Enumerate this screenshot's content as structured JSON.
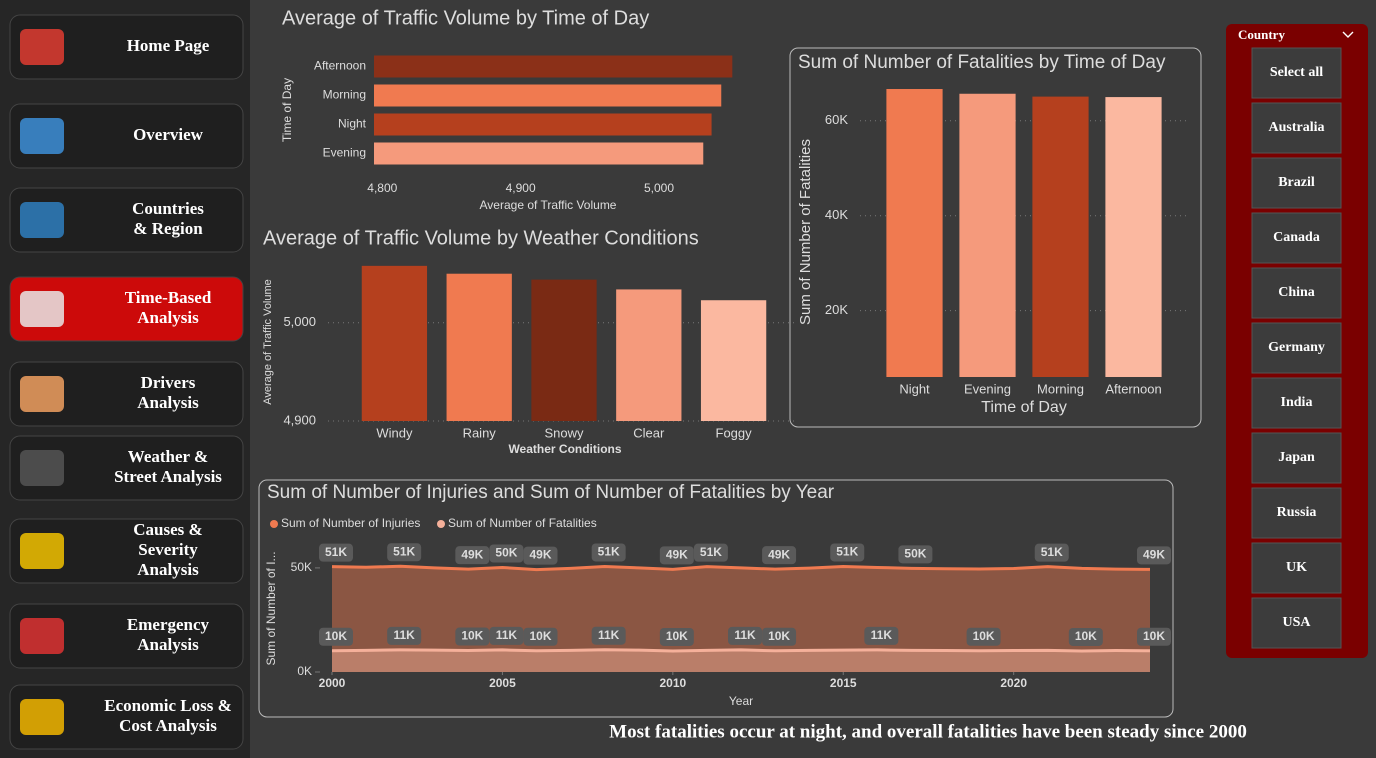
{
  "nav": [
    {
      "lines": [
        "Home Page"
      ]
    },
    {
      "lines": [
        "Overview"
      ]
    },
    {
      "lines": [
        "Countries",
        "& Region"
      ]
    },
    {
      "lines": [
        "Time-Based",
        "Analysis"
      ],
      "active": true
    },
    {
      "lines": [
        "Drivers",
        "Analysis"
      ]
    },
    {
      "lines": [
        "Weather &",
        "Street Analysis"
      ]
    },
    {
      "lines": [
        "Causes &",
        "Severity",
        "Analysis"
      ]
    },
    {
      "lines": [
        "Emergency",
        "Analysis"
      ]
    },
    {
      "lines": [
        "Economic Loss &",
        "Cost Analysis"
      ]
    }
  ],
  "chart_data": [
    {
      "type": "bar",
      "orientation": "horizontal",
      "title": "Average of Traffic Volume by Time of Day",
      "x_label": "Average of Traffic Volume",
      "y_label": "Time of Day",
      "categories": [
        "Afternoon",
        "Morning",
        "Night",
        "Evening"
      ],
      "values": [
        5053,
        5045,
        5038,
        5032
      ],
      "colors": [
        "#8b3018",
        "#f07a50",
        "#b5401e",
        "#f59a7c"
      ],
      "xlim": [
        4794,
        5060
      ],
      "xticks": [
        {
          "value": 4800,
          "label": "4,800"
        },
        {
          "value": 4900,
          "label": "4,900"
        },
        {
          "value": 5000,
          "label": "5,000"
        }
      ],
      "grid": false
    },
    {
      "type": "bar",
      "orientation": "vertical",
      "title": "Average of Traffic Volume by Weather Conditions",
      "x_label": "Weather Conditions",
      "y_label": "Average of Traffic Volume",
      "categories": [
        "Windy",
        "Rainy",
        "Snowy",
        "Clear",
        "Foggy"
      ],
      "values": [
        5058,
        5050,
        5044,
        5034,
        5023
      ],
      "colors": [
        "#b5401e",
        "#f07a50",
        "#7a2a14",
        "#f59a7c",
        "#fbb8a0"
      ],
      "ylim": [
        4900,
        5066
      ],
      "yticks": [
        {
          "value": 4900,
          "label": "4,900"
        },
        {
          "value": 5000,
          "label": "5,000"
        }
      ],
      "grid": true
    },
    {
      "type": "bar",
      "orientation": "vertical",
      "title": "Sum of Number of Fatalities by Time of Day",
      "x_label": "Time of Day",
      "y_label": "Sum of Number of Fatalities",
      "categories": [
        "Night",
        "Evening",
        "Morning",
        "Afternoon"
      ],
      "values": [
        66700,
        65700,
        65100,
        65000
      ],
      "colors": [
        "#f07a50",
        "#f59a7c",
        "#b5401e",
        "#fbb8a0"
      ],
      "ylim": [
        6000,
        68600
      ],
      "yticks": [
        {
          "value": 20000,
          "label": "20K"
        },
        {
          "value": 40000,
          "label": "40K"
        },
        {
          "value": 60000,
          "label": "60K"
        }
      ],
      "grid": true
    },
    {
      "type": "area",
      "title": "Sum of Number of Injuries and Sum of Number of Fatalities by Year",
      "x_label": "Year",
      "y_label": "Sum of Number of I...",
      "x": [
        2000,
        2001,
        2002,
        2003,
        2004,
        2005,
        2006,
        2007,
        2008,
        2009,
        2010,
        2011,
        2012,
        2013,
        2014,
        2015,
        2016,
        2017,
        2018,
        2019,
        2020,
        2021,
        2022,
        2023,
        2024
      ],
      "series": [
        {
          "name": "Sum of Number of Injuries",
          "color": "#f07a50",
          "values": [
            50600,
            50300,
            50800,
            50000,
            49400,
            50200,
            49200,
            49800,
            50700,
            50000,
            49300,
            50600,
            50000,
            49400,
            49900,
            50700,
            50200,
            49800,
            49600,
            49500,
            49700,
            50600,
            49800,
            49400,
            49300
          ],
          "value_labels": [
            "51K",
            null,
            "51K",
            null,
            "49K",
            "50K",
            "49K",
            null,
            "51K",
            null,
            "49K",
            "51K",
            null,
            "49K",
            null,
            "51K",
            null,
            "50K",
            null,
            null,
            null,
            "51K",
            null,
            null,
            "49K"
          ]
        },
        {
          "name": "Sum of Number of Fatalities",
          "color": "#f5b09a",
          "values": [
            10200,
            10400,
            10600,
            10500,
            10300,
            10600,
            10200,
            10400,
            10700,
            10500,
            10100,
            10400,
            10600,
            10200,
            10400,
            10500,
            10600,
            10400,
            10300,
            10200,
            10300,
            10400,
            10100,
            10300,
            10200
          ],
          "value_labels": [
            "10K",
            null,
            "11K",
            null,
            "10K",
            "11K",
            "10K",
            null,
            "11K",
            null,
            "10K",
            null,
            "11K",
            "10K",
            null,
            null,
            "11K",
            null,
            null,
            "10K",
            null,
            null,
            "10K",
            null,
            "10K"
          ]
        }
      ],
      "xlim": [
        2000,
        2024
      ],
      "xticks": [
        2000,
        2005,
        2010,
        2015,
        2020
      ],
      "ylim": [
        0,
        61000
      ],
      "yticks": [
        {
          "value": 0,
          "label": "0K"
        },
        {
          "value": 50000,
          "label": "50K"
        }
      ],
      "legend": "top-left"
    }
  ],
  "slicer": {
    "title": "Country",
    "items": [
      "Select all",
      "Australia",
      "Brazil",
      "Canada",
      "China",
      "Germany",
      "India",
      "Japan",
      "Russia",
      "UK",
      "USA"
    ]
  },
  "footer": "Most fatalities occur at night, and overall fatalities have been steady since 2000"
}
